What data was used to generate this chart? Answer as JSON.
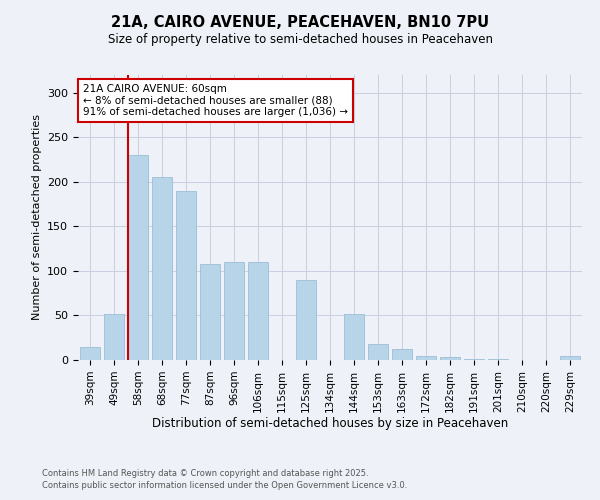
{
  "title1": "21A, CAIRO AVENUE, PEACEHAVEN, BN10 7PU",
  "title2": "Size of property relative to semi-detached houses in Peacehaven",
  "xlabel": "Distribution of semi-detached houses by size in Peacehaven",
  "ylabel": "Number of semi-detached properties",
  "categories": [
    "39sqm",
    "49sqm",
    "58sqm",
    "68sqm",
    "77sqm",
    "87sqm",
    "96sqm",
    "106sqm",
    "115sqm",
    "125sqm",
    "134sqm",
    "144sqm",
    "153sqm",
    "163sqm",
    "172sqm",
    "182sqm",
    "191sqm",
    "201sqm",
    "210sqm",
    "220sqm",
    "229sqm"
  ],
  "values": [
    15,
    52,
    230,
    205,
    190,
    108,
    110,
    110,
    0,
    90,
    0,
    52,
    18,
    12,
    5,
    3,
    1,
    1,
    0,
    0,
    5
  ],
  "bar_color": "#b8d4e8",
  "bar_edgecolor": "#90b8d0",
  "highlight_color": "#cc0000",
  "highlight_index": 2,
  "annotation_text": "21A CAIRO AVENUE: 60sqm\n← 8% of semi-detached houses are smaller (88)\n91% of semi-detached houses are larger (1,036) →",
  "footnote1": "Contains HM Land Registry data © Crown copyright and database right 2025.",
  "footnote2": "Contains public sector information licensed under the Open Government Licence v3.0.",
  "ylim": [
    0,
    320
  ],
  "yticks": [
    0,
    50,
    100,
    150,
    200,
    250,
    300
  ],
  "background_color": "#eef2f8",
  "grid_color": "#c8d0e0"
}
